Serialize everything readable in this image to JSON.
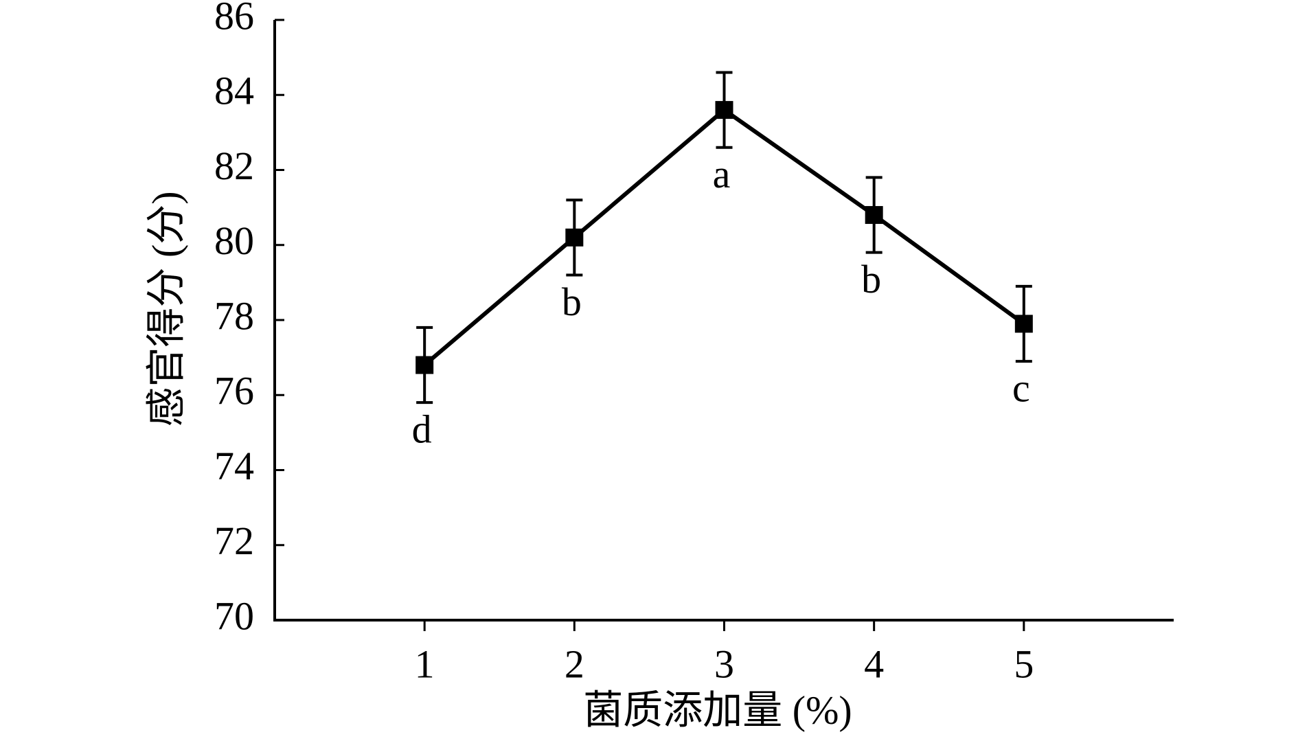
{
  "chart_data": {
    "type": "line",
    "x_label": "菌质添加量 (%)",
    "y_label": "感官得分 (分)",
    "x": [
      1,
      2,
      3,
      4,
      5
    ],
    "series": [
      {
        "color": "#000000",
        "values": [
          76.8,
          80.2,
          83.6,
          80.8,
          77.9
        ],
        "errors": [
          1.0,
          1.0,
          1.0,
          1.0,
          1.0
        ],
        "point_labels": [
          "d",
          "b",
          "a",
          "b",
          "c"
        ]
      }
    ],
    "xlim": [
      0,
      6
    ],
    "xticks": [
      1,
      2,
      3,
      4,
      5
    ],
    "ylim": [
      70,
      86
    ],
    "yticks": [
      70,
      72,
      74,
      76,
      78,
      80,
      82,
      84,
      86
    ],
    "grid": false
  }
}
